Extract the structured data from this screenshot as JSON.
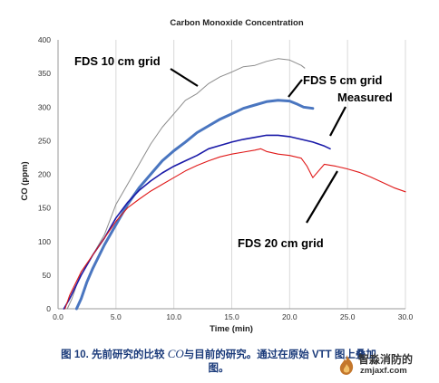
{
  "chart_data": {
    "type": "line",
    "title": "Carbon Monoxide Concentration",
    "xlabel": "Time (min)",
    "ylabel": "CO (ppm)",
    "xlim": [
      0,
      30
    ],
    "ylim": [
      0,
      400
    ],
    "xticks": [
      "0.0",
      "5.0",
      "10.0",
      "15.0",
      "20.0",
      "25.0",
      "30.0"
    ],
    "yticks": [
      "0",
      "50",
      "100",
      "150",
      "200",
      "250",
      "300",
      "350",
      "400"
    ],
    "grid": "vertical",
    "series": [
      {
        "name": "FDS 10 cm grid",
        "color": "#8c8c8c",
        "x": [
          0.8,
          1.2,
          2.0,
          3.0,
          4.0,
          5.0,
          6.0,
          7.0,
          8.0,
          9.0,
          10.0,
          11.0,
          12.0,
          13.0,
          14.0,
          15.0,
          16.0,
          17.0,
          18.0,
          19.0,
          20.0,
          21.0,
          21.3
        ],
        "y": [
          0,
          15,
          55,
          80,
          110,
          155,
          185,
          215,
          245,
          270,
          290,
          310,
          320,
          335,
          345,
          352,
          360,
          362,
          368,
          372,
          370,
          362,
          358
        ]
      },
      {
        "name": "FDS 5 cm grid",
        "color": "#4a76c0",
        "x": [
          1.6,
          2.0,
          2.5,
          3.0,
          4.0,
          5.0,
          6.0,
          7.0,
          8.0,
          9.0,
          10.0,
          11.0,
          12.0,
          13.0,
          14.0,
          15.0,
          16.0,
          17.0,
          18.0,
          19.0,
          20.0,
          20.7,
          21.2,
          22.0
        ],
        "y": [
          0,
          15,
          40,
          60,
          95,
          125,
          155,
          180,
          200,
          220,
          235,
          248,
          262,
          272,
          282,
          290,
          298,
          303,
          308,
          310,
          309,
          304,
          300,
          298
        ]
      },
      {
        "name": "Measured",
        "color": "#1a1aa8",
        "x": [
          0.5,
          1.0,
          2.0,
          3.0,
          4.0,
          5.0,
          6.0,
          7.0,
          8.0,
          9.0,
          10.0,
          11.0,
          12.0,
          13.0,
          14.0,
          15.0,
          16.0,
          17.0,
          18.0,
          19.0,
          20.0,
          21.0,
          22.0,
          23.0,
          23.5
        ],
        "y": [
          0,
          15,
          50,
          80,
          105,
          135,
          158,
          176,
          190,
          202,
          212,
          220,
          228,
          238,
          243,
          248,
          252,
          255,
          258,
          258,
          256,
          252,
          248,
          242,
          238
        ]
      },
      {
        "name": "FDS 20 cm grid",
        "color": "#e01818",
        "x": [
          0.6,
          1.0,
          2.0,
          3.0,
          4.0,
          5.0,
          6.0,
          7.0,
          8.0,
          9.0,
          10.0,
          11.0,
          12.0,
          13.0,
          14.0,
          15.0,
          16.0,
          17.0,
          17.5,
          18.0,
          19.0,
          20.0,
          21.0,
          21.5,
          22.0,
          23.0,
          24.0,
          25.0,
          26.0,
          27.0,
          28.0,
          29.0,
          30.0
        ],
        "y": [
          0,
          20,
          55,
          80,
          105,
          130,
          150,
          163,
          175,
          185,
          195,
          205,
          213,
          220,
          226,
          230,
          233,
          236,
          238,
          234,
          230,
          228,
          224,
          212,
          195,
          215,
          212,
          208,
          203,
          196,
          188,
          180,
          174
        ]
      }
    ],
    "annotations": [
      {
        "text": "FDS 10 cm grid",
        "series": "FDS 10 cm grid"
      },
      {
        "text": "FDS 5 cm grid",
        "series": "FDS 5 cm grid"
      },
      {
        "text": "Measured",
        "series": "Measured"
      },
      {
        "text": "FDS 20 cm grid",
        "series": "FDS 20 cm grid"
      }
    ]
  },
  "caption": {
    "prefix": "图 10. 先前研究的比较 ",
    "italic": "CO",
    "suffix": "与目前的研究。通过在原始 VTT 图上叠加",
    "line2": "图。"
  },
  "watermark": {
    "name": "智淼消防",
    "url": "zmjaxf.com",
    "note": "的"
  }
}
